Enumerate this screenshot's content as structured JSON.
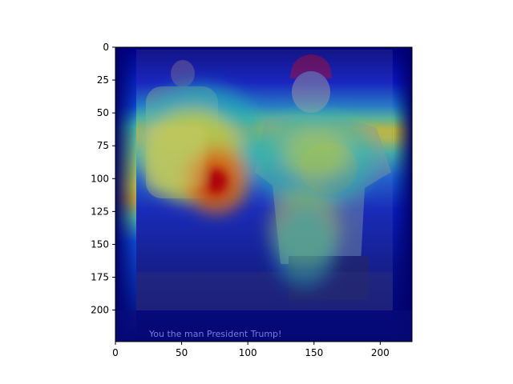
{
  "chart_data": {
    "type": "heatmap",
    "title": "",
    "xlabel": "",
    "ylabel": "",
    "xlim": [
      0,
      224
    ],
    "ylim": [
      224,
      0
    ],
    "x_ticks": [
      0,
      50,
      100,
      150,
      200
    ],
    "y_ticks": [
      0,
      25,
      50,
      75,
      100,
      125,
      150,
      175,
      200
    ],
    "colormap": "jet",
    "grid": false,
    "image_content": "man in red cap holding a cat, standing in flood water; person in background at left",
    "image_caption": "You the man President Trump!",
    "hotspots": [
      {
        "x": 75,
        "y": 108,
        "intensity": 1.0
      },
      {
        "x": 55,
        "y": 95,
        "intensity": 0.7
      },
      {
        "x": 150,
        "y": 90,
        "intensity": 0.45
      },
      {
        "x": 140,
        "y": 140,
        "intensity": 0.4
      }
    ],
    "colors": {
      "background_dark": "#00007a",
      "hot": "#d41a00",
      "warm": "#f0e000",
      "mid": "#22c8c8",
      "cool": "#1a40f0"
    }
  }
}
